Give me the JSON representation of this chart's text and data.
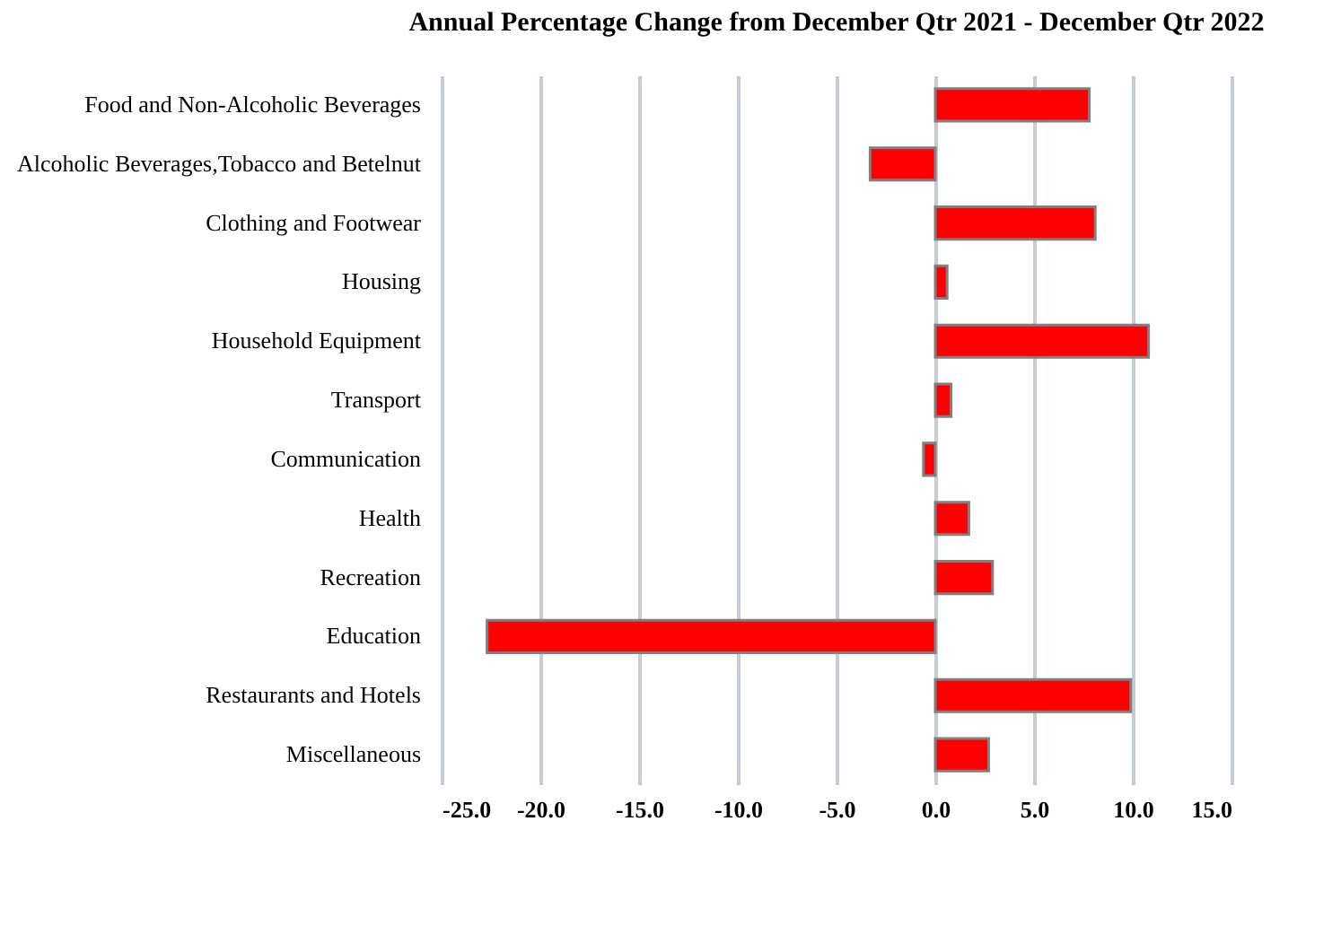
{
  "chart_data": {
    "type": "bar",
    "orientation": "horizontal",
    "title": "Annual Percentage Change from December  Qtr 2021 - December  Qtr 2022",
    "categories": [
      "Food and Non-Alcoholic Beverages",
      "Alcoholic  Beverages,Tobacco and Betelnut",
      "Clothing and Footwear",
      "Housing",
      "Household Equipment",
      "Transport",
      "Communication",
      "Health",
      "Recreation",
      "Education",
      "Restaurants and Hotels",
      "Miscellaneous"
    ],
    "values": [
      7.8,
      -3.3,
      8.1,
      0.6,
      10.8,
      0.8,
      -0.6,
      1.7,
      2.9,
      -22.7,
      9.9,
      2.7
    ],
    "color": "#ff0000",
    "xlim": [
      -25,
      15
    ],
    "xticks": [
      {
        "value": -25,
        "label": "-25.0"
      },
      {
        "value": -20,
        "label": "-20.0"
      },
      {
        "value": -15,
        "label": "-15.0"
      },
      {
        "value": -10,
        "label": "-10.0"
      },
      {
        "value": -5,
        "label": "-5.0"
      },
      {
        "value": 0,
        "label": "0.0"
      },
      {
        "value": 5,
        "label": "5.0"
      },
      {
        "value": 10,
        "label": "10.0"
      },
      {
        "value": 15,
        "label": "15.0"
      }
    ],
    "grid": "x"
  }
}
